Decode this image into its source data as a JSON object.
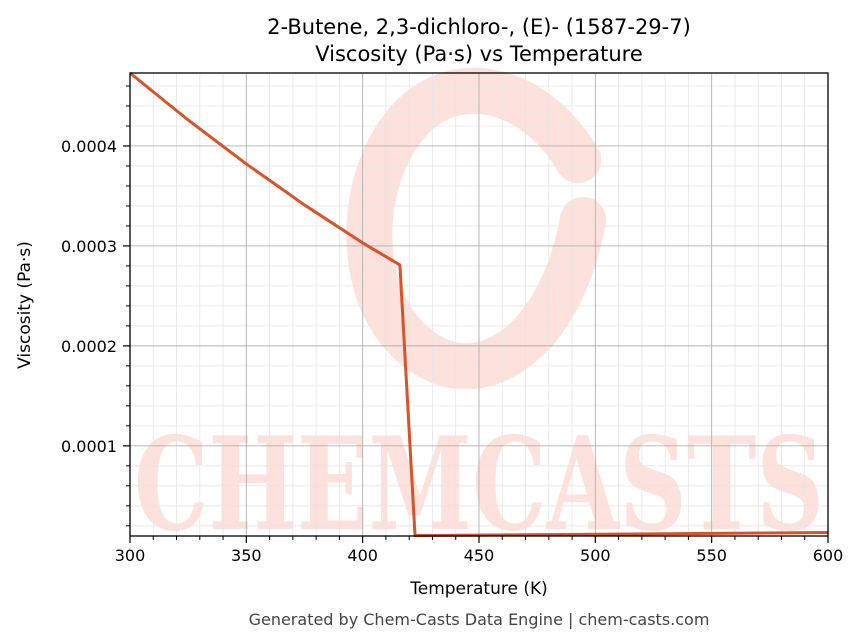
{
  "chart_data": {
    "type": "line",
    "title_line1": "2-Butene, 2,3-dichloro-, (E)- (1587-29-7)",
    "title_line2": "Viscosity (Pa·s) vs Temperature",
    "xlabel": "Temperature (K)",
    "ylabel": "Viscosity (Pa·s)",
    "xlim": [
      300,
      600
    ],
    "ylim": [
      9.8e-06,
      0.000473
    ],
    "x_ticks": [
      300,
      350,
      400,
      450,
      500,
      550,
      600
    ],
    "x_tick_labels": [
      "300",
      "350",
      "400",
      "450",
      "500",
      "550",
      "600"
    ],
    "y_ticks": [
      0.0001,
      0.0002,
      0.0003,
      0.0004
    ],
    "y_tick_labels": [
      "0.0001",
      "0.0002",
      "0.0003",
      "0.0004"
    ],
    "grid": true,
    "series": [
      {
        "color": "#d9532a",
        "x": [
          300,
          325,
          350,
          375,
          400,
          416,
          422.5,
          450,
          500,
          550,
          600
        ],
        "y": [
          0.000473,
          0.000426,
          0.000382,
          0.000341,
          0.000303,
          0.000281,
          1.03e-05,
          1.07e-05,
          1.15e-05,
          1.24e-05,
          1.33e-05
        ]
      }
    ]
  },
  "footer": "Generated by Chem-Casts Data Engine | chem-casts.com",
  "watermark": "CHEMCASTS",
  "colors": {
    "line": "#d9532a",
    "watermark": "#fde1dc",
    "grid_major": "#b0b0b0",
    "grid_minor": "#e6e6e6",
    "footer": "#444444"
  }
}
